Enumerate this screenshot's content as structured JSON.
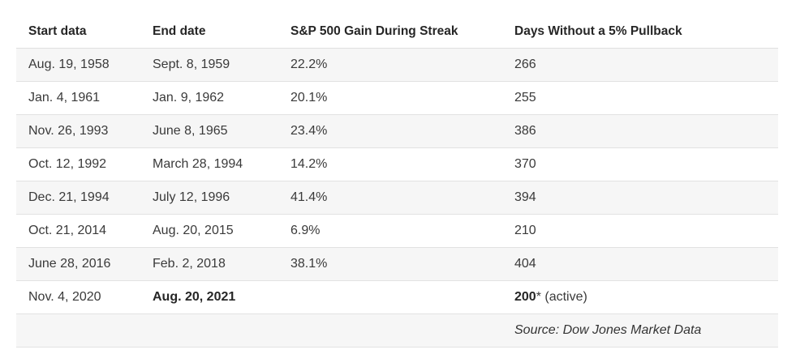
{
  "table": {
    "columns": [
      {
        "label": "Start data"
      },
      {
        "label": "End date"
      },
      {
        "label": "S&P 500 Gain During Streak"
      },
      {
        "label": "Days Without a 5% Pullback"
      }
    ],
    "rows": [
      {
        "start": "Aug. 19, 1958",
        "end": "Sept. 8, 1959",
        "gain": "22.2%",
        "days": "266",
        "days_suffix": "",
        "end_bold": false,
        "days_bold": false
      },
      {
        "start": "Jan. 4, 1961",
        "end": "Jan. 9, 1962",
        "gain": "20.1%",
        "days": "255",
        "days_suffix": "",
        "end_bold": false,
        "days_bold": false
      },
      {
        "start": "Nov. 26, 1993",
        "end": "June 8, 1965",
        "gain": "23.4%",
        "days": "386",
        "days_suffix": "",
        "end_bold": false,
        "days_bold": false
      },
      {
        "start": "Oct. 12, 1992",
        "end": "March 28, 1994",
        "gain": "14.2%",
        "days": "370",
        "days_suffix": "",
        "end_bold": false,
        "days_bold": false
      },
      {
        "start": "Dec. 21, 1994",
        "end": "July 12, 1996",
        "gain": "41.4%",
        "days": "394",
        "days_suffix": "",
        "end_bold": false,
        "days_bold": false
      },
      {
        "start": "Oct. 21, 2014",
        "end": "Aug. 20, 2015",
        "gain": "6.9%",
        "days": "210",
        "days_suffix": "",
        "end_bold": false,
        "days_bold": false
      },
      {
        "start": "June 28, 2016",
        "end": "Feb. 2, 2018",
        "gain": "38.1%",
        "days": "404",
        "days_suffix": "",
        "end_bold": false,
        "days_bold": false
      },
      {
        "start": "Nov. 4, 2020",
        "end": "Aug. 20, 2021",
        "gain": "",
        "days": "200",
        "days_suffix": "* (active)",
        "end_bold": true,
        "days_bold": true
      }
    ],
    "source": "Source: Dow Jones Market Data"
  },
  "colors": {
    "stripe_background": "#f6f6f6",
    "row_border": "#e2e2e2",
    "header_text": "#262626",
    "body_text": "#3a3a3a"
  }
}
